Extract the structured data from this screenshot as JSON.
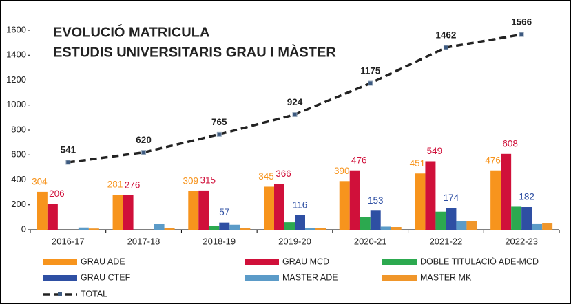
{
  "chart_data": {
    "type": "bar",
    "title": [
      "EVOLUCIÓ MATRICULA",
      "ESTUDIS UNIVERSITARIS GRAU I MÀSTER"
    ],
    "categories": [
      "2016-17",
      "2017-18",
      "2018-19",
      "2019-20",
      "2020-21",
      "2021-22",
      "2022-23"
    ],
    "series": [
      {
        "name": "GRAU ADE",
        "color": "#f7941d",
        "data_labels": true,
        "values": [
          304,
          281,
          309,
          345,
          390,
          451,
          476
        ]
      },
      {
        "name": "GRAU MCD",
        "color": "#d0103a",
        "data_labels": true,
        "values": [
          206,
          276,
          315,
          366,
          476,
          549,
          608
        ]
      },
      {
        "name": "DOBLE TITULACIÓ ADE-MCD",
        "color": "#2ca94f",
        "data_labels": false,
        "values": [
          null,
          null,
          30,
          60,
          100,
          145,
          185
        ]
      },
      {
        "name": "GRAU CTEF",
        "color": "#2e4fa3",
        "data_labels": true,
        "values": [
          null,
          null,
          57,
          116,
          153,
          174,
          182
        ]
      },
      {
        "name": "MASTER ADE",
        "color": "#5b9bc8",
        "data_labels": false,
        "values": [
          18,
          45,
          40,
          15,
          25,
          70,
          50
        ]
      },
      {
        "name": "MASTER MK",
        "color": "#f0962a",
        "data_labels": false,
        "values": [
          10,
          15,
          12,
          15,
          22,
          68,
          55
        ]
      },
      {
        "name": "TOTAL",
        "type": "line",
        "color": "#222222",
        "marker_color": "#3d5a80",
        "data_labels": true,
        "values": [
          541,
          620,
          765,
          924,
          1175,
          1462,
          1566
        ]
      }
    ],
    "ylim": [
      0,
      1600
    ],
    "yticks": [
      0,
      200,
      400,
      600,
      800,
      1000,
      1200,
      1400,
      1600
    ],
    "grid": false
  }
}
